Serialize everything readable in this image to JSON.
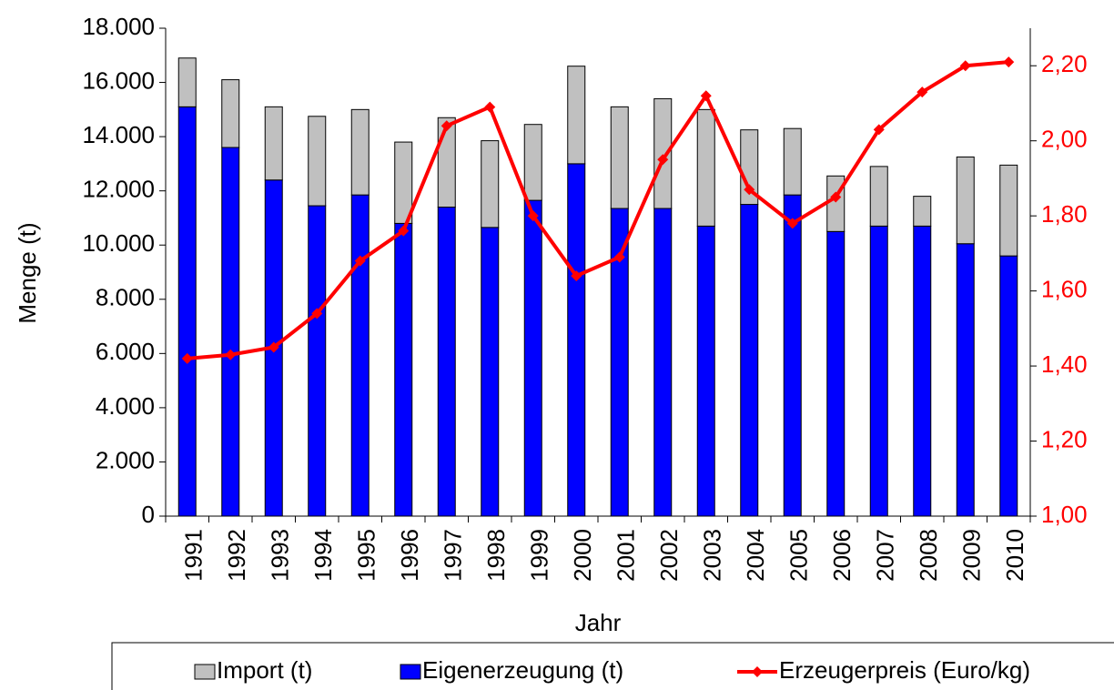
{
  "chart_data": {
    "type": "bar",
    "stacked": true,
    "x_label": "Jahr",
    "y_label": "Menge (t)",
    "categories": [
      "1991",
      "1992",
      "1993",
      "1994",
      "1995",
      "1996",
      "1997",
      "1998",
      "1999",
      "2000",
      "2001",
      "2002",
      "2003",
      "2004",
      "2005",
      "2006",
      "2007",
      "2008",
      "2009",
      "2010"
    ],
    "series": [
      {
        "name": "Import (t)",
        "color": "#c0c0c0",
        "stack_order": 2,
        "values": [
          1800,
          2500,
          2700,
          3300,
          3150,
          3000,
          3300,
          3200,
          2800,
          3600,
          3750,
          4050,
          4300,
          2750,
          2450,
          2050,
          2200,
          1100,
          3200,
          3350
        ]
      },
      {
        "name": "Eigenerzeugung (t)",
        "color": "#0000ff",
        "stack_order": 1,
        "values": [
          15100,
          13600,
          12400,
          11450,
          11850,
          10800,
          11400,
          10650,
          11650,
          13000,
          11350,
          11350,
          10700,
          11500,
          11850,
          10500,
          10700,
          10700,
          10050,
          9600
        ]
      },
      {
        "name": "Erzeugerpreis (Euro/kg)",
        "color": "#ff0000",
        "type": "line",
        "axis": "y2",
        "values": [
          1.42,
          1.43,
          1.45,
          1.54,
          1.68,
          1.76,
          2.04,
          2.09,
          1.8,
          1.64,
          1.69,
          1.95,
          2.12,
          1.87,
          1.78,
          1.85,
          2.03,
          2.13,
          2.2,
          2.21
        ]
      }
    ],
    "ylim": [
      0,
      18000
    ],
    "yticks": [
      0,
      {
        "value": 2000,
        "label": "2.000"
      },
      {
        "value": 4000,
        "label": "4.000"
      },
      {
        "value": 6000,
        "label": "6.000"
      },
      {
        "value": 8000,
        "label": "8.000"
      },
      {
        "value": 10000,
        "label": "10.000"
      },
      {
        "value": 12000,
        "label": "12.000"
      },
      {
        "value": 14000,
        "label": "14.000"
      },
      {
        "value": 16000,
        "label": "16.000"
      },
      {
        "value": 18000,
        "label": "18.000"
      }
    ],
    "y2lim": [
      1.0,
      2.3
    ],
    "y2ticks": [
      {
        "value": 1.0,
        "label": "1,00"
      },
      {
        "value": 1.2,
        "label": "1,20"
      },
      {
        "value": 1.4,
        "label": "1,40"
      },
      {
        "value": 1.6,
        "label": "1,60"
      },
      {
        "value": 1.8,
        "label": "1,80"
      },
      {
        "value": 2.0,
        "label": "2,00"
      },
      {
        "value": 2.2,
        "label": "2,20"
      }
    ],
    "y2_color": "#ff0000",
    "legend": "bottom"
  }
}
